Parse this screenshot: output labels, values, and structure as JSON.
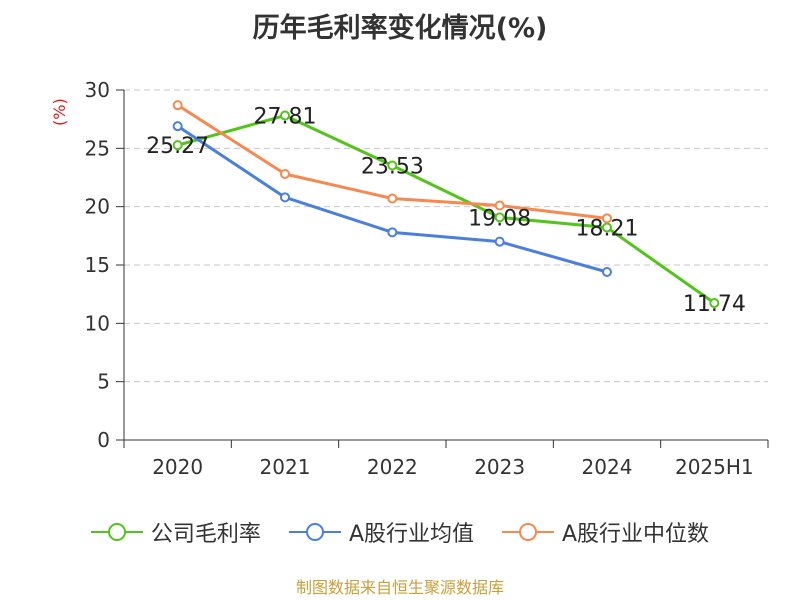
{
  "chart_data": {
    "type": "line",
    "title": "历年毛利率变化情况(%)",
    "ylabel": "(%)",
    "xlabel": "",
    "categories": [
      "2020",
      "2021",
      "2022",
      "2023",
      "2024",
      "2025H1"
    ],
    "ylim": [
      0,
      30
    ],
    "yticks": [
      0,
      5,
      10,
      15,
      20,
      25,
      30
    ],
    "grid": true,
    "legend_position": "bottom",
    "series": [
      {
        "name": "公司毛利率",
        "color": "#52c41a",
        "values": [
          25.27,
          27.81,
          23.53,
          19.08,
          18.21,
          11.74
        ],
        "labels": [
          "25.27",
          "27.81",
          "23.53",
          "19.08",
          "18.21",
          "11.74"
        ]
      },
      {
        "name": "A股行业均值",
        "color": "#4a7fdc",
        "values": [
          26.9,
          20.8,
          17.8,
          17.0,
          14.4,
          null
        ]
      },
      {
        "name": "A股行业中位数",
        "color": "#f5894f",
        "values": [
          28.7,
          22.8,
          20.7,
          20.1,
          19.0,
          null
        ]
      }
    ]
  },
  "source": "制图数据来自恒生聚源数据库"
}
